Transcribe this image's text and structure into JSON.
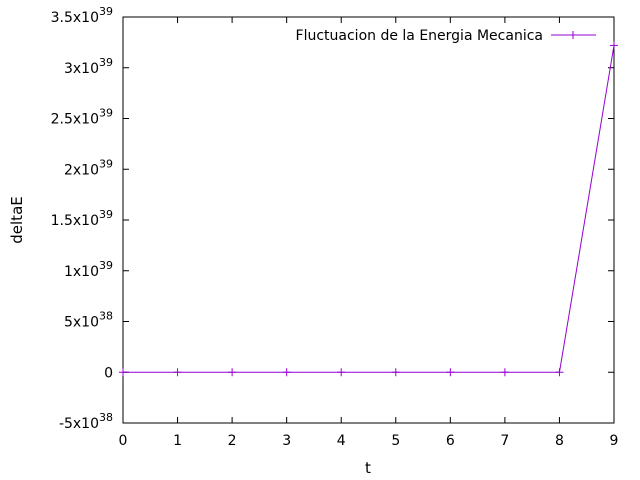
{
  "chart_data": {
    "type": "line",
    "title": "",
    "xlabel": "t",
    "ylabel": "deltaE",
    "xlim": [
      0,
      9
    ],
    "ylim": [
      -5e+38,
      3.5e+39
    ],
    "grid": false,
    "legend_position": "top-right",
    "x_ticks": [
      {
        "value": 0,
        "label": "0"
      },
      {
        "value": 1,
        "label": "1"
      },
      {
        "value": 2,
        "label": "2"
      },
      {
        "value": 3,
        "label": "3"
      },
      {
        "value": 4,
        "label": "4"
      },
      {
        "value": 5,
        "label": "5"
      },
      {
        "value": 6,
        "label": "6"
      },
      {
        "value": 7,
        "label": "7"
      },
      {
        "value": 8,
        "label": "8"
      },
      {
        "value": 9,
        "label": "9"
      }
    ],
    "y_ticks": [
      {
        "value": -5e+38,
        "mantissa": "-5x10",
        "exponent": "38"
      },
      {
        "value": 0,
        "mantissa": "0",
        "exponent": ""
      },
      {
        "value": 5e+38,
        "mantissa": "5x10",
        "exponent": "38"
      },
      {
        "value": 1e+39,
        "mantissa": "1x10",
        "exponent": "39"
      },
      {
        "value": 1.5e+39,
        "mantissa": "1.5x10",
        "exponent": "39"
      },
      {
        "value": 2e+39,
        "mantissa": "2x10",
        "exponent": "39"
      },
      {
        "value": 2.5e+39,
        "mantissa": "2.5x10",
        "exponent": "39"
      },
      {
        "value": 3e+39,
        "mantissa": "3x10",
        "exponent": "39"
      },
      {
        "value": 3.5e+39,
        "mantissa": "3.5x10",
        "exponent": "39"
      }
    ],
    "series": [
      {
        "name": "Fluctuacion de la Energia Mecanica",
        "color": "#9400d3",
        "marker": "plus",
        "x": [
          0,
          1,
          2,
          3,
          4,
          5,
          6,
          7,
          8,
          9
        ],
        "y": [
          0,
          0,
          0,
          0,
          0,
          0,
          0,
          0,
          0,
          3.22e+39
        ]
      }
    ]
  }
}
